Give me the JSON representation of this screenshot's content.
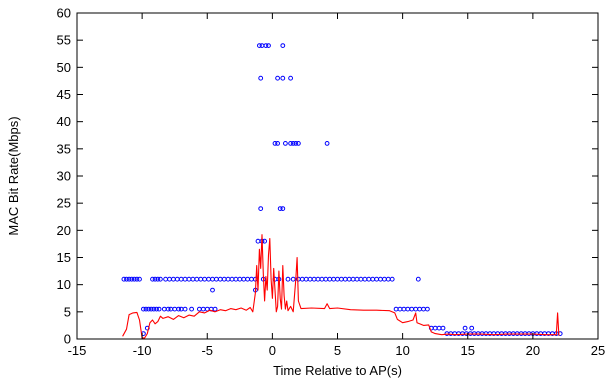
{
  "chart_data": {
    "type": "scatter",
    "title": "",
    "xlabel": "Time Relative to AP(s)",
    "ylabel": "MAC Bit Rate(Mbps)",
    "xlim": [
      -15,
      25
    ],
    "ylim": [
      0,
      60
    ],
    "xticks": [
      -15,
      -10,
      -5,
      0,
      5,
      10,
      15,
      20,
      25
    ],
    "yticks": [
      0,
      5,
      10,
      15,
      20,
      25,
      30,
      35,
      40,
      45,
      50,
      55,
      60
    ],
    "legend": "none",
    "grid": false,
    "colors": {
      "scatter": "#0000ff",
      "line": "#ff0000",
      "axis": "#000000"
    },
    "series": [
      {
        "kind": "scatter",
        "points": [
          [
            -11.4,
            11
          ],
          [
            -11.2,
            11
          ],
          [
            -11.0,
            11
          ],
          [
            -10.8,
            11
          ],
          [
            -10.6,
            11
          ],
          [
            -10.4,
            11
          ],
          [
            -10.2,
            11
          ],
          [
            -9.9,
            5.5
          ],
          [
            -9.7,
            5.5
          ],
          [
            -9.5,
            5.5
          ],
          [
            -9.3,
            5.5
          ],
          [
            -9.1,
            5.5
          ],
          [
            -8.9,
            5.5
          ],
          [
            -8.7,
            5.5
          ],
          [
            -9.6,
            2.0
          ],
          [
            -9.9,
            1.0
          ],
          [
            -9.2,
            11
          ],
          [
            -9.0,
            11
          ],
          [
            -8.8,
            11
          ],
          [
            -8.6,
            11
          ],
          [
            -8.3,
            5.5
          ],
          [
            -8.0,
            5.5
          ],
          [
            -7.8,
            5.5
          ],
          [
            -7.5,
            5.5
          ],
          [
            -7.2,
            5.5
          ],
          [
            -7.0,
            5.5
          ],
          [
            -6.7,
            5.5
          ],
          [
            -6.2,
            5.5
          ],
          [
            -8.2,
            11
          ],
          [
            -7.9,
            11
          ],
          [
            -7.6,
            11
          ],
          [
            -7.3,
            11
          ],
          [
            -7.0,
            11
          ],
          [
            -6.7,
            11
          ],
          [
            -6.4,
            11
          ],
          [
            -6.1,
            11
          ],
          [
            -5.8,
            11
          ],
          [
            -5.5,
            11
          ],
          [
            -5.2,
            11
          ],
          [
            -4.9,
            11
          ],
          [
            -4.6,
            11
          ],
          [
            -4.3,
            11
          ],
          [
            -4.0,
            11
          ],
          [
            -3.7,
            11
          ],
          [
            -3.4,
            11
          ],
          [
            -3.1,
            11
          ],
          [
            -2.8,
            11
          ],
          [
            -2.5,
            11
          ],
          [
            -2.2,
            11
          ],
          [
            -1.9,
            11
          ],
          [
            -1.6,
            11
          ],
          [
            -1.3,
            11
          ],
          [
            -5.6,
            5.5
          ],
          [
            -5.3,
            5.5
          ],
          [
            -5.0,
            5.5
          ],
          [
            -4.7,
            5.5
          ],
          [
            -4.4,
            5.5
          ],
          [
            -4.6,
            9
          ],
          [
            -1.3,
            9
          ],
          [
            -1.1,
            18
          ],
          [
            -0.8,
            18
          ],
          [
            -0.6,
            18
          ],
          [
            -1.0,
            54
          ],
          [
            -0.8,
            54
          ],
          [
            -0.5,
            54
          ],
          [
            -0.3,
            54
          ],
          [
            0.8,
            54
          ],
          [
            -0.9,
            48
          ],
          [
            0.4,
            48
          ],
          [
            0.8,
            48
          ],
          [
            1.4,
            48
          ],
          [
            -0.9,
            24
          ],
          [
            0.6,
            24
          ],
          [
            0.8,
            24
          ],
          [
            0.2,
            36
          ],
          [
            0.4,
            36
          ],
          [
            1.0,
            36
          ],
          [
            1.4,
            36
          ],
          [
            1.6,
            36
          ],
          [
            1.8,
            36
          ],
          [
            2.0,
            36
          ],
          [
            4.2,
            36
          ],
          [
            -0.7,
            11
          ],
          [
            0.2,
            11
          ],
          [
            0.5,
            11
          ],
          [
            1.2,
            11
          ],
          [
            1.6,
            11
          ],
          [
            2.0,
            11
          ],
          [
            2.3,
            11
          ],
          [
            2.6,
            11
          ],
          [
            2.9,
            11
          ],
          [
            3.2,
            11
          ],
          [
            3.5,
            11
          ],
          [
            3.8,
            11
          ],
          [
            4.1,
            11
          ],
          [
            4.4,
            11
          ],
          [
            4.7,
            11
          ],
          [
            5.0,
            11
          ],
          [
            5.3,
            11
          ],
          [
            5.6,
            11
          ],
          [
            5.9,
            11
          ],
          [
            6.2,
            11
          ],
          [
            6.5,
            11
          ],
          [
            6.8,
            11
          ],
          [
            7.1,
            11
          ],
          [
            7.4,
            11
          ],
          [
            7.7,
            11
          ],
          [
            8.0,
            11
          ],
          [
            8.3,
            11
          ],
          [
            8.6,
            11
          ],
          [
            8.9,
            11
          ],
          [
            9.2,
            11
          ],
          [
            11.2,
            11
          ],
          [
            9.5,
            5.5
          ],
          [
            9.8,
            5.5
          ],
          [
            10.1,
            5.5
          ],
          [
            10.4,
            5.5
          ],
          [
            10.7,
            5.5
          ],
          [
            11.0,
            5.5
          ],
          [
            11.3,
            5.5
          ],
          [
            11.6,
            5.5
          ],
          [
            11.9,
            5.5
          ],
          [
            12.2,
            2.0
          ],
          [
            12.5,
            2.0
          ],
          [
            12.8,
            2.0
          ],
          [
            13.1,
            2.0
          ],
          [
            14.8,
            2.0
          ],
          [
            15.3,
            2.0
          ],
          [
            13.4,
            1.0
          ],
          [
            13.7,
            1.0
          ],
          [
            14.0,
            1.0
          ],
          [
            14.3,
            1.0
          ],
          [
            14.6,
            1.0
          ],
          [
            14.9,
            1.0
          ],
          [
            15.2,
            1.0
          ],
          [
            15.5,
            1.0
          ],
          [
            15.8,
            1.0
          ],
          [
            16.1,
            1.0
          ],
          [
            16.4,
            1.0
          ],
          [
            16.7,
            1.0
          ],
          [
            17.0,
            1.0
          ],
          [
            17.3,
            1.0
          ],
          [
            17.6,
            1.0
          ],
          [
            17.9,
            1.0
          ],
          [
            18.2,
            1.0
          ],
          [
            18.5,
            1.0
          ],
          [
            18.8,
            1.0
          ],
          [
            19.1,
            1.0
          ],
          [
            19.4,
            1.0
          ],
          [
            19.7,
            1.0
          ],
          [
            20.0,
            1.0
          ],
          [
            20.3,
            1.0
          ],
          [
            20.6,
            1.0
          ],
          [
            20.9,
            1.0
          ],
          [
            21.2,
            1.0
          ],
          [
            21.5,
            1.0
          ],
          [
            21.8,
            1.0
          ],
          [
            22.1,
            1.0
          ]
        ]
      },
      {
        "kind": "line",
        "points": [
          [
            -11.5,
            0.5
          ],
          [
            -11.2,
            1.8
          ],
          [
            -11.0,
            4.5
          ],
          [
            -10.7,
            4.8
          ],
          [
            -10.4,
            4.9
          ],
          [
            -10.2,
            3.5
          ],
          [
            -10.0,
            0.2
          ],
          [
            -9.8,
            0.2
          ],
          [
            -9.6,
            1.0
          ],
          [
            -9.4,
            3.0
          ],
          [
            -9.2,
            3.5
          ],
          [
            -9.0,
            2.8
          ],
          [
            -8.8,
            3.2
          ],
          [
            -8.6,
            4.2
          ],
          [
            -8.4,
            3.8
          ],
          [
            -8.0,
            4.1
          ],
          [
            -7.6,
            3.6
          ],
          [
            -7.2,
            4.3
          ],
          [
            -6.8,
            3.9
          ],
          [
            -6.4,
            4.4
          ],
          [
            -6.0,
            4.2
          ],
          [
            -5.6,
            5.0
          ],
          [
            -5.2,
            4.8
          ],
          [
            -4.8,
            5.3
          ],
          [
            -4.4,
            5.0
          ],
          [
            -4.0,
            5.4
          ],
          [
            -3.6,
            5.2
          ],
          [
            -3.2,
            5.6
          ],
          [
            -2.8,
            5.4
          ],
          [
            -2.4,
            5.7
          ],
          [
            -2.0,
            5.3
          ],
          [
            -1.7,
            5.8
          ],
          [
            -1.5,
            5.0
          ],
          [
            -1.3,
            8.5
          ],
          [
            -1.2,
            13.5
          ],
          [
            -1.1,
            9.0
          ],
          [
            -1.0,
            16.5
          ],
          [
            -0.9,
            13.0
          ],
          [
            -0.8,
            19.2
          ],
          [
            -0.7,
            12.0
          ],
          [
            -0.6,
            7.0
          ],
          [
            -0.5,
            11.5
          ],
          [
            -0.4,
            9.0
          ],
          [
            -0.3,
            15.5
          ],
          [
            -0.2,
            18.5
          ],
          [
            -0.1,
            11.0
          ],
          [
            0.0,
            7.5
          ],
          [
            0.1,
            13.0
          ],
          [
            0.2,
            9.0
          ],
          [
            0.3,
            5.0
          ],
          [
            0.4,
            6.0
          ],
          [
            0.5,
            12.5
          ],
          [
            0.6,
            7.5
          ],
          [
            0.7,
            5.5
          ],
          [
            0.8,
            13.5
          ],
          [
            0.9,
            8.0
          ],
          [
            1.0,
            5.5
          ],
          [
            1.1,
            7.0
          ],
          [
            1.2,
            5.2
          ],
          [
            1.4,
            6.0
          ],
          [
            1.6,
            5.0
          ],
          [
            1.8,
            11.0
          ],
          [
            1.9,
            15.0
          ],
          [
            2.0,
            7.0
          ],
          [
            2.2,
            5.6
          ],
          [
            3.0,
            5.7
          ],
          [
            4.0,
            5.6
          ],
          [
            4.2,
            6.5
          ],
          [
            4.4,
            5.6
          ],
          [
            5.0,
            5.7
          ],
          [
            6.0,
            5.4
          ],
          [
            7.0,
            5.3
          ],
          [
            8.0,
            5.3
          ],
          [
            9.0,
            5.2
          ],
          [
            9.4,
            4.8
          ],
          [
            9.6,
            3.6
          ],
          [
            10.0,
            3.0
          ],
          [
            10.4,
            3.2
          ],
          [
            10.8,
            3.5
          ],
          [
            11.0,
            4.8
          ],
          [
            11.1,
            3.0
          ],
          [
            11.3,
            2.8
          ],
          [
            11.6,
            2.5
          ],
          [
            12.0,
            2.6
          ],
          [
            12.2,
            1.3
          ],
          [
            12.5,
            1.0
          ],
          [
            13.0,
            0.8
          ],
          [
            13.5,
            0.9
          ],
          [
            14.0,
            0.8
          ],
          [
            15.0,
            0.9
          ],
          [
            16.0,
            0.9
          ],
          [
            17.0,
            0.8
          ],
          [
            18.0,
            0.9
          ],
          [
            19.0,
            0.9
          ],
          [
            20.0,
            0.9
          ],
          [
            21.0,
            0.8
          ],
          [
            21.8,
            0.8
          ],
          [
            21.9,
            4.8
          ],
          [
            22.0,
            0.6
          ]
        ]
      }
    ]
  }
}
